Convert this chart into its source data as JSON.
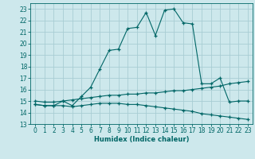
{
  "xlabel": "Humidex (Indice chaleur)",
  "background_color": "#cde8ec",
  "grid_color": "#a8cdd4",
  "line_color": "#006666",
  "xlim": [
    -0.5,
    23.5
  ],
  "ylim": [
    13,
    23.5
  ],
  "yticks": [
    13,
    14,
    15,
    16,
    17,
    18,
    19,
    20,
    21,
    22,
    23
  ],
  "xticks": [
    0,
    1,
    2,
    3,
    4,
    5,
    6,
    7,
    8,
    9,
    10,
    11,
    12,
    13,
    14,
    15,
    16,
    17,
    18,
    19,
    20,
    21,
    22,
    23
  ],
  "series1_x": [
    0,
    1,
    2,
    3,
    4,
    5,
    6,
    7,
    8,
    9,
    10,
    11,
    12,
    13,
    14,
    15,
    16,
    17,
    18,
    19,
    20,
    21,
    22,
    23
  ],
  "series1_y": [
    14.7,
    14.6,
    14.6,
    15.0,
    14.6,
    15.4,
    16.2,
    17.8,
    19.4,
    19.5,
    21.3,
    21.4,
    22.7,
    20.7,
    22.9,
    23.0,
    21.8,
    21.7,
    16.5,
    16.5,
    17.0,
    14.9,
    15.0,
    15.0
  ],
  "series2_x": [
    0,
    1,
    2,
    3,
    4,
    5,
    6,
    7,
    8,
    9,
    10,
    11,
    12,
    13,
    14,
    15,
    16,
    17,
    18,
    19,
    20,
    21,
    22,
    23
  ],
  "series2_y": [
    15.0,
    14.9,
    14.9,
    15.0,
    15.1,
    15.2,
    15.3,
    15.4,
    15.5,
    15.5,
    15.6,
    15.6,
    15.7,
    15.7,
    15.8,
    15.9,
    15.9,
    16.0,
    16.1,
    16.2,
    16.3,
    16.5,
    16.6,
    16.7
  ],
  "series3_x": [
    0,
    1,
    2,
    3,
    4,
    5,
    6,
    7,
    8,
    9,
    10,
    11,
    12,
    13,
    14,
    15,
    16,
    17,
    18,
    19,
    20,
    21,
    22,
    23
  ],
  "series3_y": [
    14.7,
    14.6,
    14.6,
    14.6,
    14.5,
    14.6,
    14.7,
    14.8,
    14.8,
    14.8,
    14.7,
    14.7,
    14.6,
    14.5,
    14.4,
    14.3,
    14.2,
    14.1,
    13.9,
    13.8,
    13.7,
    13.6,
    13.5,
    13.4
  ],
  "label_fontsize": 5.5,
  "xlabel_fontsize": 6.0
}
